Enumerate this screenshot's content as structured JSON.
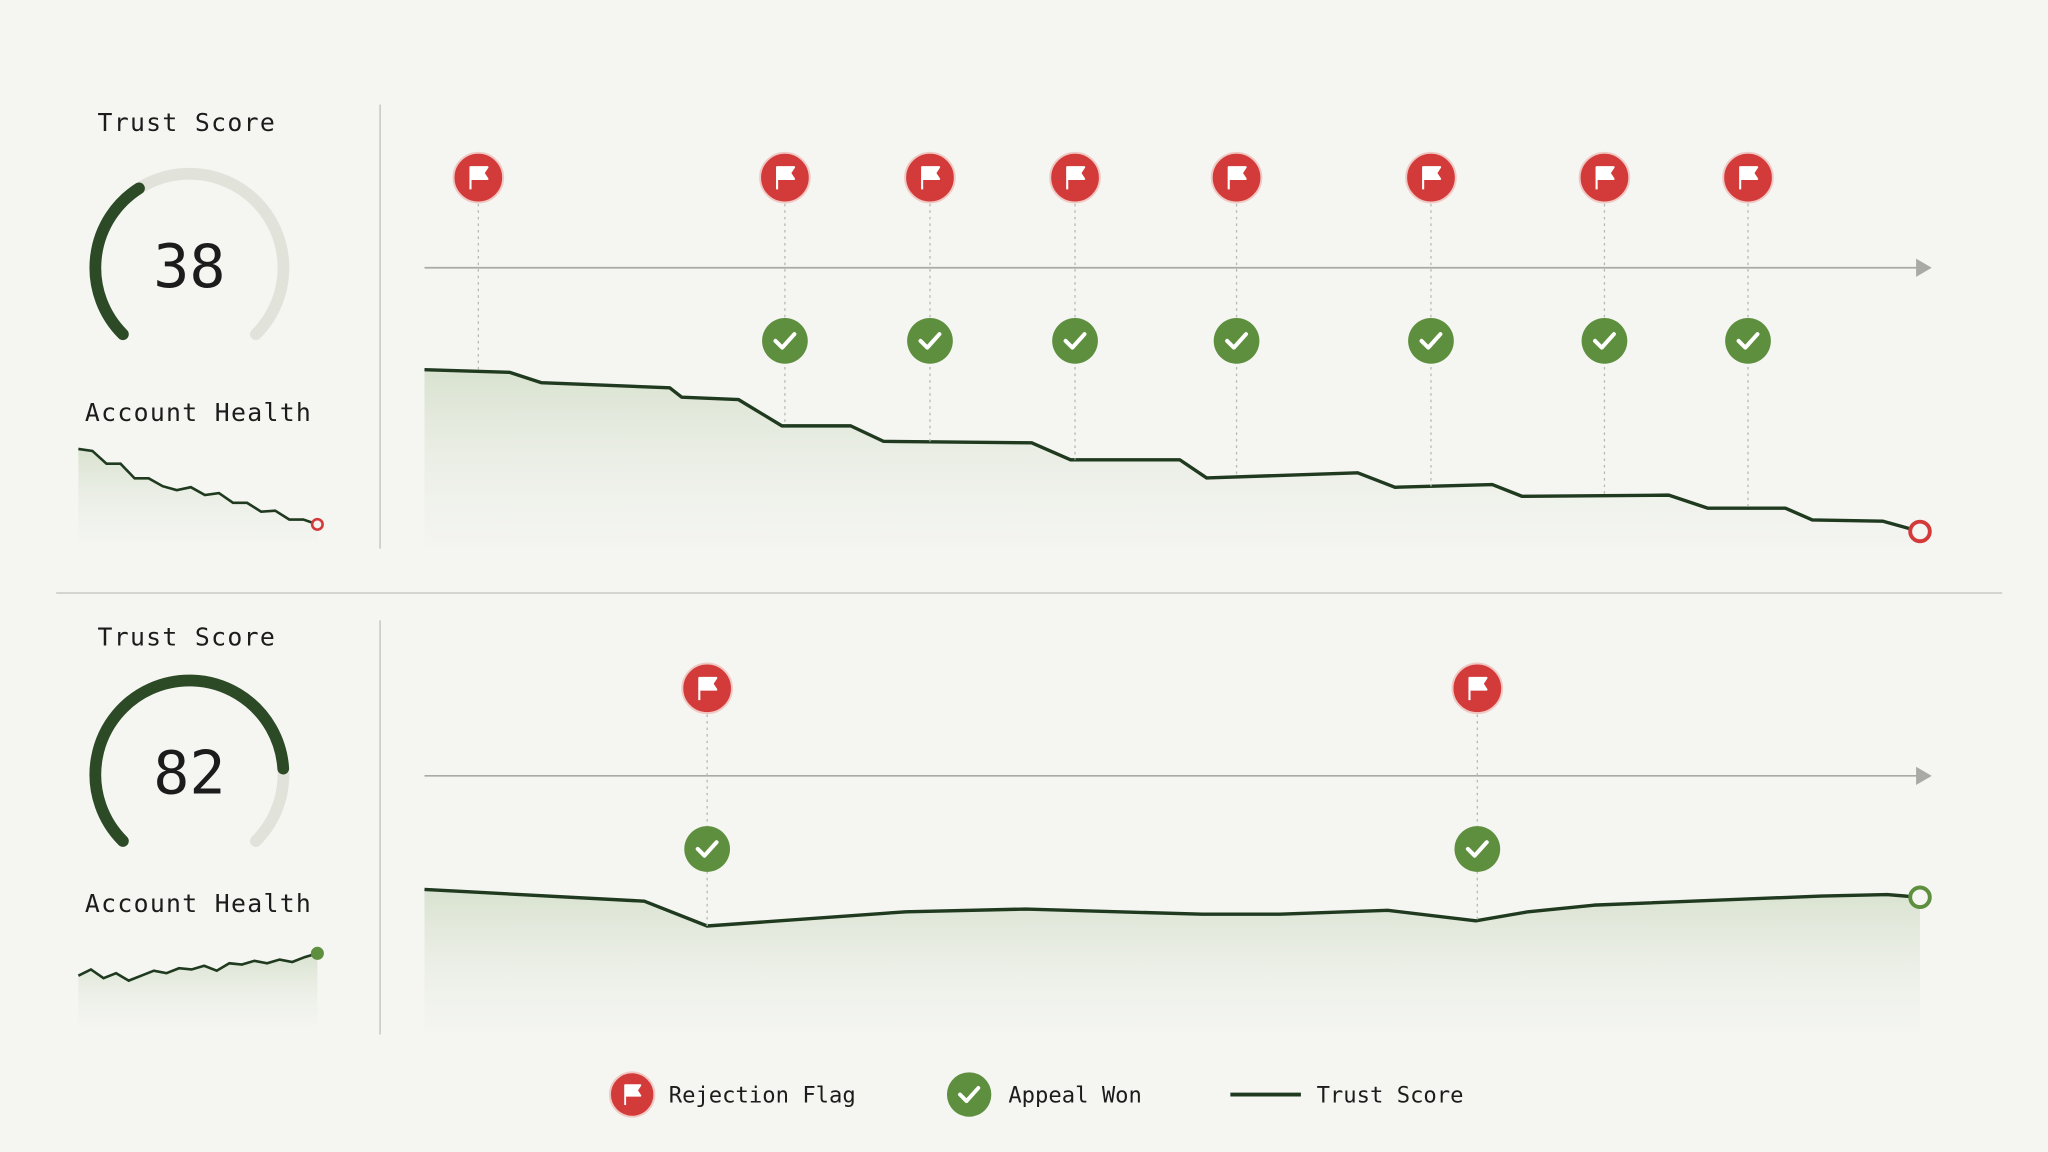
{
  "chart_data": [
    {
      "type": "line",
      "gauge_label": "Trust Score",
      "score": 38,
      "sparkline_label": "Account Health",
      "sparkline": [
        95,
        93,
        80,
        80,
        65,
        65,
        57,
        53,
        56,
        48,
        50,
        40,
        40,
        31,
        32,
        23,
        23,
        18
      ],
      "x": [
        0,
        5.7,
        7.8,
        16.4,
        17.2,
        21.0,
        23.9,
        28.5,
        30.7,
        40.6,
        43.2,
        50.5,
        52.3,
        62.4,
        64.9,
        71.4,
        73.4,
        83.2,
        85.8,
        91.0,
        92.8,
        97.5,
        100
      ],
      "values": [
        71.8,
        70.7,
        66.5,
        64.4,
        60.6,
        59.6,
        48.9,
        48.9,
        42.6,
        42.0,
        35.1,
        35.1,
        27.7,
        29.8,
        23.9,
        25.0,
        20.2,
        20.7,
        15.4,
        15.4,
        10.6,
        10.1,
        5.9
      ],
      "xlim": [
        0,
        100
      ],
      "ylim": [
        0,
        100
      ],
      "flags": [
        3.6,
        24.1,
        33.8,
        43.5,
        54.3,
        67.3,
        78.9,
        88.5
      ],
      "appeals": [
        24.1,
        33.8,
        43.5,
        54.3,
        67.3,
        78.9,
        88.5
      ],
      "color": "#1f3a1f",
      "end_color": "#d33b3b"
    },
    {
      "type": "line",
      "gauge_label": "Trust Score",
      "score": 82,
      "sparkline_label": "Account Health",
      "sparkline": [
        40,
        45,
        38,
        42,
        36,
        40,
        44,
        42,
        46,
        45,
        48,
        44,
        50,
        49,
        52,
        50,
        53,
        51,
        55,
        58
      ],
      "x": [
        0,
        14.7,
        18.9,
        32.2,
        40.2,
        52.0,
        57.2,
        64.4,
        70.3,
        73.8,
        78.2,
        93.4,
        97.8,
        100
      ],
      "values": [
        58.0,
        53.2,
        43.1,
        48.9,
        50.0,
        47.9,
        47.9,
        49.5,
        45.2,
        48.9,
        51.6,
        55.3,
        55.9,
        54.8
      ],
      "xlim": [
        0,
        100
      ],
      "ylim": [
        0,
        100
      ],
      "flags": [
        18.9,
        70.4
      ],
      "appeals": [
        18.9,
        70.4
      ],
      "color": "#1f3a1f",
      "end_color": "#5e8f3e"
    }
  ],
  "legend": [
    "Rejection Flag",
    "Appeal Won",
    "Trust Score"
  ]
}
